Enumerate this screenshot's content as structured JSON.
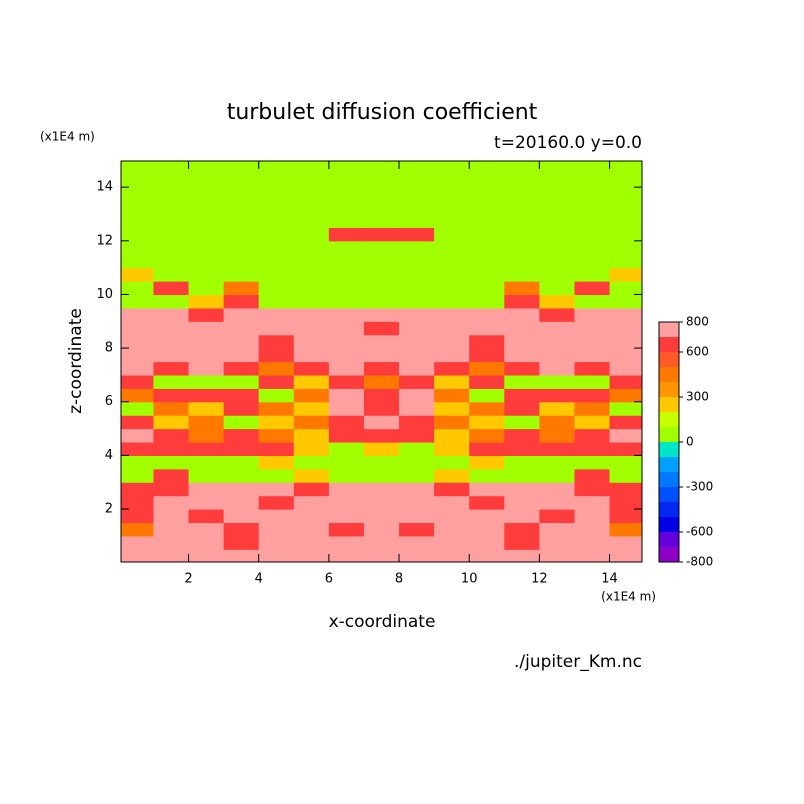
{
  "chart_data": {
    "type": "contour",
    "title": "turbulet diffusion coefficient",
    "subtitle": "t=20160.0 y=0.0",
    "x_label": "x-coordinate",
    "y_label": "z-coordinate",
    "x_unit": "(x1E4 m)",
    "y_unit": "(x1E4 m)",
    "source": "./jupiter_Km.nc",
    "xlim": [
      0.075,
      14.925
    ],
    "ylim": [
      0.025,
      14.975
    ],
    "xticks": [
      2,
      4,
      6,
      8,
      10,
      12,
      14
    ],
    "yticks": [
      2,
      4,
      6,
      8,
      10,
      12,
      14
    ],
    "x": [
      0.5,
      1.5,
      2.5,
      3.5,
      4.5,
      5.5,
      6.5,
      7.5,
      8.5,
      9.5,
      10.5,
      11.5,
      12.5,
      13.5,
      14.5
    ],
    "y": [
      0.25,
      0.75,
      1.25,
      1.75,
      2.25,
      2.75,
      3.25,
      3.75,
      4.25,
      4.75,
      5.25,
      5.75,
      6.25,
      6.75,
      7.25,
      7.75,
      8.25,
      8.75,
      9.25,
      9.75,
      10.25,
      10.75,
      11.25,
      11.75,
      12.25,
      12.75,
      13.25,
      13.75,
      14.25,
      14.75
    ],
    "z": [
      [
        750,
        750,
        750,
        750,
        750,
        750,
        750,
        750,
        750,
        750,
        750,
        750,
        750,
        750,
        750
      ],
      [
        750,
        750,
        750,
        650,
        750,
        750,
        750,
        750,
        750,
        750,
        750,
        650,
        750,
        750,
        750
      ],
      [
        450,
        750,
        750,
        650,
        750,
        750,
        650,
        750,
        650,
        750,
        750,
        650,
        750,
        750,
        450
      ],
      [
        650,
        750,
        650,
        750,
        750,
        750,
        750,
        750,
        750,
        750,
        750,
        750,
        650,
        750,
        650
      ],
      [
        650,
        750,
        750,
        750,
        650,
        750,
        750,
        750,
        750,
        750,
        650,
        750,
        750,
        750,
        650
      ],
      [
        650,
        650,
        750,
        750,
        750,
        650,
        750,
        750,
        750,
        650,
        750,
        750,
        750,
        650,
        650
      ],
      [
        50,
        650,
        50,
        50,
        50,
        250,
        50,
        50,
        50,
        250,
        50,
        50,
        50,
        650,
        50
      ],
      [
        50,
        50,
        50,
        50,
        250,
        50,
        50,
        50,
        50,
        50,
        250,
        50,
        50,
        50,
        50
      ],
      [
        650,
        650,
        650,
        650,
        650,
        250,
        50,
        250,
        50,
        250,
        650,
        650,
        650,
        650,
        650
      ],
      [
        750,
        650,
        450,
        650,
        450,
        250,
        650,
        650,
        650,
        250,
        450,
        650,
        450,
        650,
        750
      ],
      [
        650,
        250,
        450,
        50,
        250,
        450,
        650,
        750,
        650,
        450,
        250,
        50,
        450,
        250,
        650
      ],
      [
        50,
        450,
        250,
        650,
        450,
        250,
        750,
        650,
        750,
        250,
        450,
        650,
        250,
        450,
        50
      ],
      [
        450,
        650,
        650,
        650,
        50,
        450,
        750,
        650,
        750,
        450,
        50,
        650,
        650,
        650,
        450
      ],
      [
        650,
        50,
        50,
        50,
        650,
        250,
        650,
        450,
        650,
        250,
        650,
        50,
        50,
        50,
        650
      ],
      [
        750,
        650,
        750,
        650,
        450,
        650,
        750,
        650,
        750,
        650,
        450,
        650,
        750,
        650,
        750
      ],
      [
        750,
        750,
        750,
        750,
        650,
        750,
        750,
        750,
        750,
        750,
        650,
        750,
        750,
        750,
        750
      ],
      [
        750,
        750,
        750,
        750,
        650,
        750,
        750,
        750,
        750,
        750,
        650,
        750,
        750,
        750,
        750
      ],
      [
        750,
        750,
        750,
        750,
        750,
        750,
        750,
        650,
        750,
        750,
        750,
        750,
        750,
        750,
        750
      ],
      [
        750,
        750,
        650,
        750,
        750,
        750,
        750,
        750,
        750,
        750,
        750,
        750,
        650,
        750,
        750
      ],
      [
        50,
        50,
        250,
        650,
        50,
        50,
        50,
        50,
        50,
        50,
        50,
        650,
        250,
        50,
        50
      ],
      [
        50,
        650,
        50,
        450,
        50,
        50,
        50,
        50,
        50,
        50,
        50,
        450,
        50,
        650,
        50
      ],
      [
        250,
        50,
        50,
        50,
        50,
        50,
        50,
        50,
        50,
        50,
        50,
        50,
        50,
        50,
        250
      ],
      [
        50,
        50,
        50,
        50,
        50,
        50,
        50,
        50,
        50,
        50,
        50,
        50,
        50,
        50,
        50
      ],
      [
        50,
        50,
        50,
        50,
        50,
        50,
        50,
        50,
        50,
        50,
        50,
        50,
        50,
        50,
        50
      ],
      [
        50,
        50,
        50,
        50,
        50,
        50,
        650,
        650,
        650,
        50,
        50,
        50,
        50,
        50,
        50
      ],
      [
        50,
        50,
        50,
        50,
        50,
        50,
        50,
        50,
        50,
        50,
        50,
        50,
        50,
        50,
        50
      ],
      [
        50,
        50,
        50,
        50,
        50,
        50,
        50,
        50,
        50,
        50,
        50,
        50,
        50,
        50,
        50
      ],
      [
        50,
        50,
        50,
        50,
        50,
        50,
        50,
        50,
        50,
        50,
        50,
        50,
        50,
        50,
        50
      ],
      [
        50,
        50,
        50,
        50,
        50,
        50,
        50,
        50,
        50,
        50,
        50,
        50,
        50,
        50,
        50
      ],
      [
        50,
        50,
        50,
        50,
        50,
        50,
        50,
        50,
        50,
        50,
        50,
        50,
        50,
        50,
        50
      ]
    ],
    "colorbar": {
      "levels": [
        -800,
        -700,
        -600,
        -500,
        -400,
        -300,
        -200,
        -100,
        0,
        100,
        200,
        300,
        400,
        500,
        600,
        700,
        800
      ],
      "colors": [
        "#8c00c8",
        "#6400dc",
        "#0000e6",
        "#0028f0",
        "#0050ff",
        "#0078ff",
        "#00a0ff",
        "#00e6c8",
        "#a0ff00",
        "#c8ff00",
        "#ffc800",
        "#ff9600",
        "#ff7800",
        "#ff5a28",
        "#ff3c3c",
        "#ffa0a0"
      ],
      "ticks": [
        800,
        600,
        300,
        0,
        -300,
        -600,
        -800
      ]
    }
  }
}
